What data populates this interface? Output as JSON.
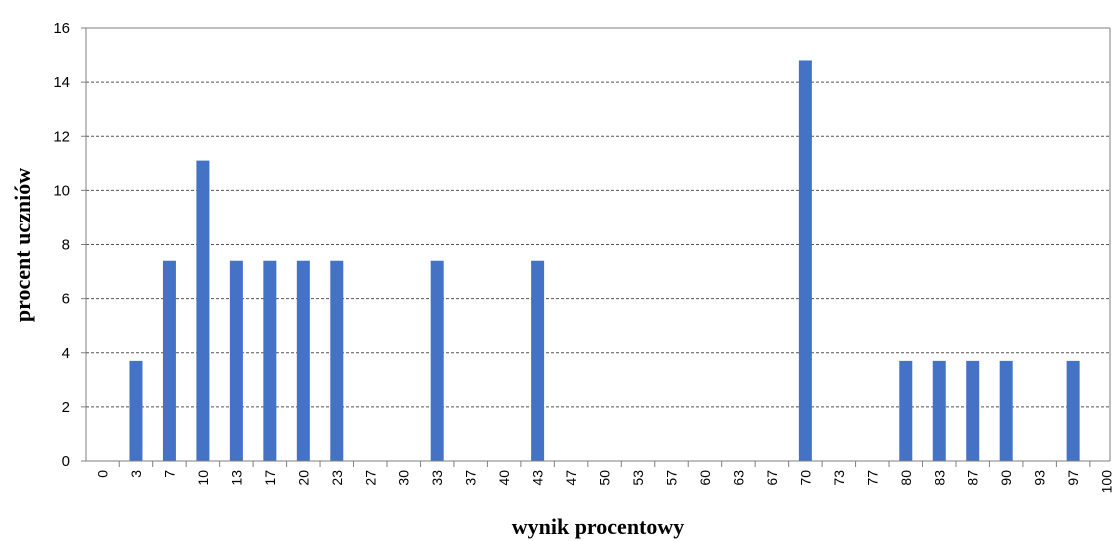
{
  "chart_data": {
    "type": "bar",
    "title": "",
    "xlabel": "wynik procentowy",
    "ylabel": "procent uczniów",
    "ylim": [
      0,
      16
    ],
    "yticks": [
      0,
      2,
      4,
      6,
      8,
      10,
      12,
      14,
      16
    ],
    "grid": "horizontal dashed",
    "legend": "none",
    "bar_color": "#4472C4",
    "categories": [
      "0",
      "3",
      "7",
      "10",
      "13",
      "17",
      "20",
      "23",
      "27",
      "30",
      "33",
      "37",
      "40",
      "43",
      "47",
      "50",
      "53",
      "57",
      "60",
      "63",
      "67",
      "70",
      "73",
      "77",
      "80",
      "83",
      "87",
      "90",
      "93",
      "97",
      "100"
    ],
    "values": [
      0,
      3.7,
      7.4,
      11.1,
      7.4,
      7.4,
      7.4,
      7.4,
      0,
      0,
      7.4,
      0,
      0,
      7.4,
      0,
      0,
      0,
      0,
      0,
      0,
      0,
      14.8,
      0,
      0,
      3.7,
      3.7,
      3.7,
      3.7,
      0,
      3.7,
      0
    ]
  }
}
